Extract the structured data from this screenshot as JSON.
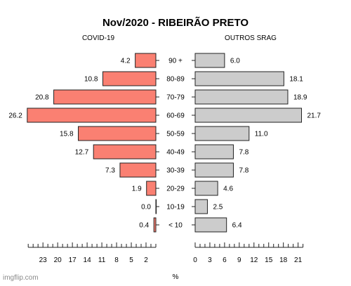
{
  "chart_data": {
    "type": "bar",
    "title": "Nov/2020 - RIBEIRÃO PRETO",
    "xlabel": "%",
    "categories": [
      "90 +",
      "80-89",
      "70-79",
      "60-69",
      "50-59",
      "40-49",
      "30-39",
      "20-29",
      "10-19",
      "< 10"
    ],
    "series": [
      {
        "name": "COVID-19",
        "values": [
          4.2,
          10.8,
          20.8,
          26.2,
          15.8,
          12.7,
          7.3,
          1.9,
          0.0,
          0.4
        ],
        "labels": [
          "4.2",
          "10.8",
          "20.8",
          "26.2",
          "15.8",
          "12.7",
          "7.3",
          "1.9",
          "0.0",
          "0.4"
        ],
        "color": "#fa8072",
        "ticks": [
          "23",
          "20",
          "17",
          "14",
          "11",
          "8",
          "5",
          "2"
        ],
        "xlim": [
          0,
          26.6
        ]
      },
      {
        "name": "OUTROS SRAG",
        "values": [
          6.0,
          18.1,
          18.9,
          21.7,
          11.0,
          7.8,
          7.8,
          4.6,
          2.5,
          6.4
        ],
        "labels": [
          "6.0",
          "18.1",
          "18.9",
          "21.7",
          "11.0",
          "7.8",
          "7.8",
          "4.6",
          "2.5",
          "6.4"
        ],
        "color": "#cccccc",
        "ticks": [
          "0",
          "3",
          "6",
          "9",
          "12",
          "15",
          "18",
          "21"
        ],
        "xlim": [
          0,
          22.2
        ]
      }
    ]
  },
  "watermark": "imgflip.com"
}
